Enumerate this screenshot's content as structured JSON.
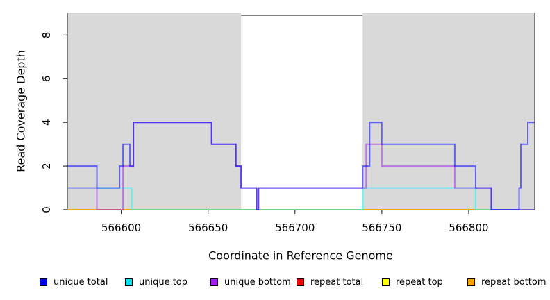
{
  "chart_data": {
    "type": "line",
    "subtype": "step-coverage",
    "title": "",
    "xlabel": "Coordinate in Reference Genome",
    "ylabel": "Read Coverage Depth",
    "xlim": [
      566569,
      566838
    ],
    "ylim": [
      0,
      9
    ],
    "xticks": [
      566600,
      566650,
      566700,
      566750,
      566800
    ],
    "yticks": [
      0,
      2,
      4,
      6,
      8
    ],
    "grid": false,
    "background_color": "#ffffff",
    "shade_color": "#d9d9d9",
    "shaded_regions": [
      {
        "name": "left-shaded-region",
        "x0": 566569,
        "x1": 566669
      },
      {
        "name": "right-shaded-region",
        "x0": 566739,
        "x1": 566838
      }
    ],
    "unshaded_gap": {
      "x0": 566669,
      "x1": 566739
    },
    "line_alpha": 0.55,
    "line_width": 2,
    "series": [
      {
        "name": "repeat-total",
        "label": "repeat total",
        "color": "#FF0000",
        "steps": [
          [
            566569,
            0
          ],
          [
            566838,
            0
          ]
        ]
      },
      {
        "name": "repeat-top",
        "label": "repeat top",
        "color": "#FFFF00",
        "steps": [
          [
            566569,
            0
          ],
          [
            566829,
            0
          ]
        ]
      },
      {
        "name": "repeat-bottom",
        "label": "repeat bottom",
        "color": "#FFA500",
        "steps": [
          [
            566569,
            0
          ],
          [
            566829,
            0
          ]
        ]
      },
      {
        "name": "unique-top",
        "label": "unique top",
        "color": "#00FFFF",
        "steps": [
          [
            566569,
            1
          ],
          [
            566606,
            0
          ],
          [
            566739,
            1
          ],
          [
            566804,
            0
          ],
          [
            566838,
            0
          ]
        ]
      },
      {
        "name": "unique-bottom",
        "label": "unique bottom",
        "color": "#A020F0",
        "steps": [
          [
            566569,
            1
          ],
          [
            566586,
            0
          ],
          [
            566601,
            2
          ],
          [
            566607,
            4
          ],
          [
            566652,
            3
          ],
          [
            566666,
            2
          ],
          [
            566669,
            1
          ],
          [
            566678,
            0
          ],
          [
            566679,
            1
          ],
          [
            566741,
            3
          ],
          [
            566750,
            2
          ],
          [
            566792,
            1
          ],
          [
            566813,
            0
          ],
          [
            566838,
            0
          ]
        ]
      },
      {
        "name": "unique-total",
        "label": "unique total",
        "color": "#0000FF",
        "steps": [
          [
            566569,
            2
          ],
          [
            566586,
            1
          ],
          [
            566599,
            2
          ],
          [
            566601,
            3
          ],
          [
            566605,
            2
          ],
          [
            566607,
            4
          ],
          [
            566652,
            3
          ],
          [
            566666,
            2
          ],
          [
            566669,
            1
          ],
          [
            566678,
            0
          ],
          [
            566679,
            1
          ],
          [
            566739,
            2
          ],
          [
            566743,
            4
          ],
          [
            566750,
            3
          ],
          [
            566792,
            2
          ],
          [
            566804,
            1
          ],
          [
            566813,
            0
          ],
          [
            566829,
            1
          ],
          [
            566830,
            3
          ],
          [
            566834,
            4
          ],
          [
            566838,
            4
          ]
        ]
      }
    ],
    "legend": {
      "position": "bottom",
      "items": [
        {
          "label": "unique total",
          "color": "#0000EE"
        },
        {
          "label": "unique top",
          "color": "#00E5EE"
        },
        {
          "label": "unique bottom",
          "color": "#A020F0"
        },
        {
          "label": "repeat total",
          "color": "#EE0000"
        },
        {
          "label": "repeat top",
          "color": "#FFFF00"
        },
        {
          "label": "repeat bottom",
          "color": "#FFA500"
        }
      ]
    }
  }
}
